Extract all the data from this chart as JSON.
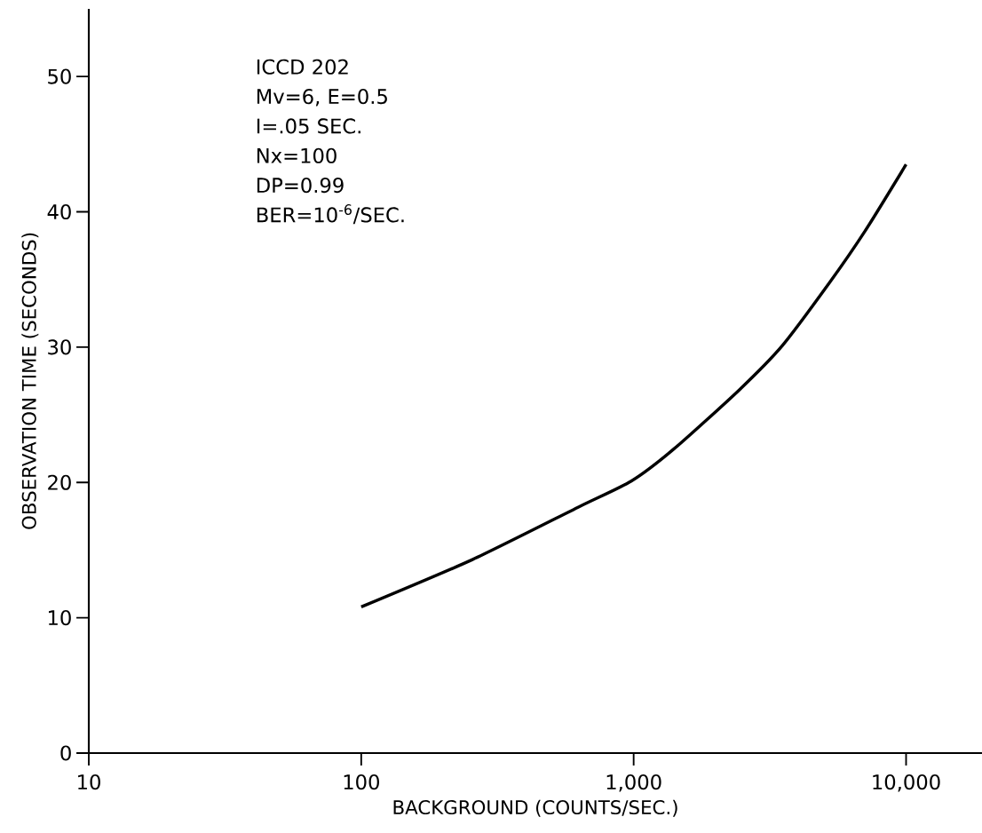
{
  "chart_data": {
    "type": "line",
    "xlabel": "BACKGROUND (COUNTS/SEC.)",
    "ylabel": "OBSERVATION TIME (SECONDS)",
    "log": "x",
    "marker": "none",
    "line_style": "solid",
    "xlim": [
      10,
      19000
    ],
    "ylim": [
      0,
      55
    ],
    "xticks": [
      10,
      100,
      {
        "value": 1000,
        "label": "1,000"
      },
      {
        "value": 10000,
        "label": "10,000"
      }
    ],
    "yticks": [
      0,
      10,
      20,
      30,
      40,
      50
    ],
    "series": [
      {
        "color": "#000000",
        "x": [
          100,
          256,
          630,
          980,
          1410,
          2430,
          3510,
          5250,
          7080,
          10000
        ],
        "values": [
          10.8,
          14.3,
          18.2,
          20.1,
          22.5,
          26.8,
          30.1,
          34.8,
          38.6,
          43.5
        ]
      }
    ],
    "annotations": [
      "ICCD 202",
      "Mv=6, E=0.5",
      "I=.05 SEC.",
      "Nx=100",
      "DP=0.99",
      "BER=10$^{-6}$/SEC."
    ]
  }
}
